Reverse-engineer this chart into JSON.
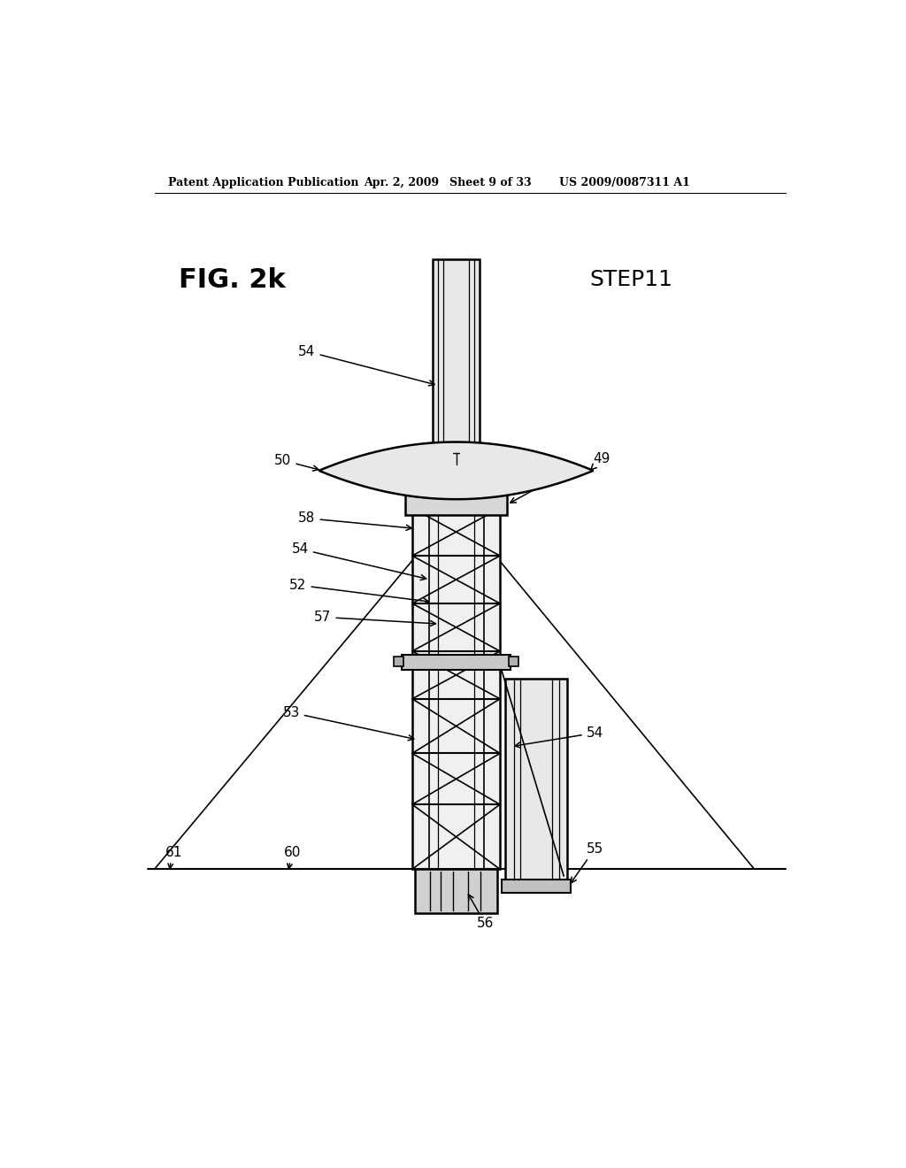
{
  "bg_color": "#ffffff",
  "header_text": "Patent Application Publication",
  "header_date": "Apr. 2, 2009",
  "header_sheet": "Sheet 9 of 33",
  "header_patent": "US 2009/0087311 A1",
  "fig_label": "FIG. 2k",
  "step_label": "STEP11"
}
